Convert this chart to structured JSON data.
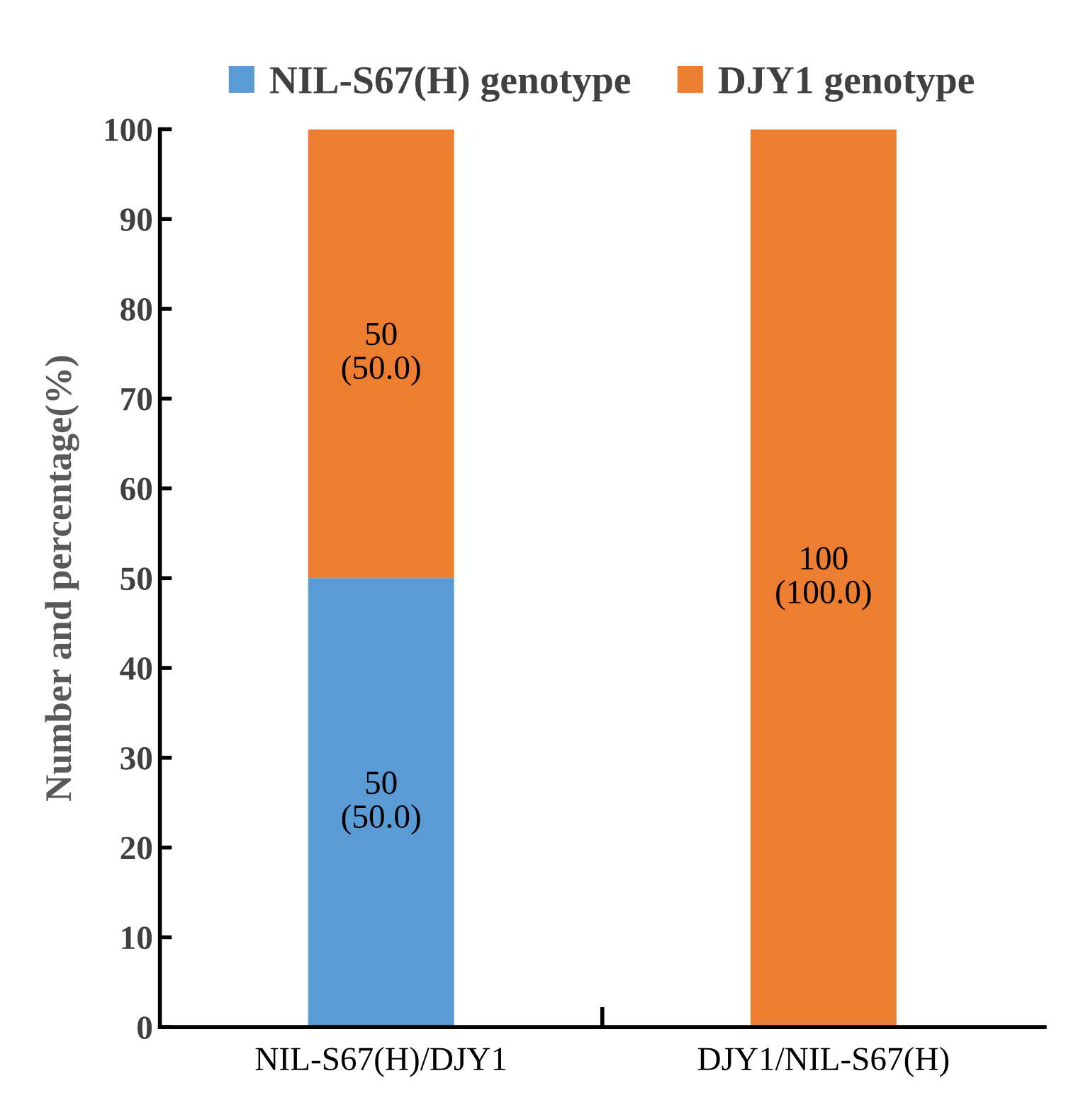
{
  "chart_data": {
    "type": "bar",
    "stacked": true,
    "ylabel": "Number and percentage(%)",
    "categories": [
      "NIL-S67(H)/DJY1",
      "DJY1/NIL-S67(H)"
    ],
    "series": [
      {
        "name": "NIL-S67(H) genotype",
        "color": "#5b9bd5",
        "values": [
          50,
          0
        ],
        "value_labels": [
          "50\n(50.0)",
          null
        ]
      },
      {
        "name": "DJY1 genotype",
        "color": "#ed7d31",
        "values": [
          50,
          100
        ],
        "value_labels": [
          "50\n(50.0)",
          "100\n(100.0)"
        ]
      }
    ],
    "ylim": [
      0,
      100
    ],
    "yticks": [
      0,
      10,
      20,
      30,
      40,
      50,
      60,
      70,
      80,
      90,
      100
    ],
    "grid": false,
    "legend": "top"
  }
}
